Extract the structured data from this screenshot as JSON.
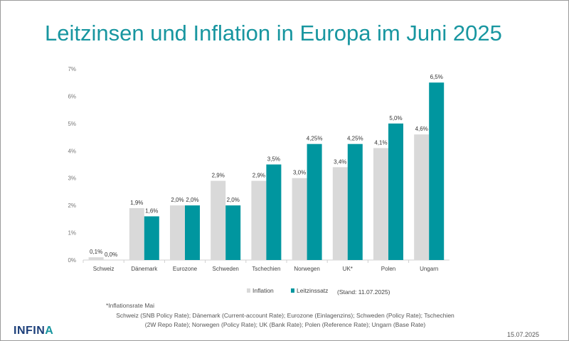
{
  "chart_data": {
    "type": "bar",
    "title": "Leitzinsen und Inflation in Europa im Juni 2025",
    "categories": [
      "Schweiz",
      "Dänemark",
      "Eurozone",
      "Schweden",
      "Tschechien",
      "Norwegen",
      "UK*",
      "Polen",
      "Ungarn"
    ],
    "series": [
      {
        "name": "Inflation",
        "color": "#d9d9d9",
        "values": [
          0.1,
          1.9,
          2.0,
          2.9,
          2.9,
          3.0,
          3.4,
          4.1,
          4.6
        ],
        "labels": [
          "0,1%",
          "1,9%",
          "2,0%",
          "2,9%",
          "2,9%",
          "3,0%",
          "3,4%",
          "4,1%",
          "4,6%"
        ]
      },
      {
        "name": "Leitzinssatz",
        "color": "#00969f",
        "values": [
          0.0,
          1.6,
          2.0,
          2.0,
          3.5,
          4.25,
          4.25,
          5.0,
          6.5
        ],
        "labels": [
          "0,0%",
          "1,6%",
          "2,0%",
          "2,0%",
          "3,5%",
          "4,25%",
          "4,25%",
          "5,0%",
          "6,5%"
        ]
      }
    ],
    "yticks": [
      "0%",
      "1%",
      "2%",
      "3%",
      "4%",
      "5%",
      "6%",
      "7%"
    ],
    "ylim": [
      0,
      7
    ],
    "legend_position": "bottom",
    "legend_note": "(Stand: 11.07.2025)",
    "grid": false
  },
  "footer": {
    "note": "*Inflationsrate Mai",
    "sources_line1": "Schweiz (SNB Policy Rate); Dänemark (Current-account Rate); Eurozone (Einlagenzins); Schweden (Policy Rate); Tschechien",
    "sources_line2": "(2W Repo Rate); Norwegen (Policy Rate); UK (Bank Rate); Polen (Reference Rate); Ungarn (Base Rate)",
    "logo_main": "INFIN",
    "logo_accent": "A",
    "date": "15.07.2025"
  }
}
